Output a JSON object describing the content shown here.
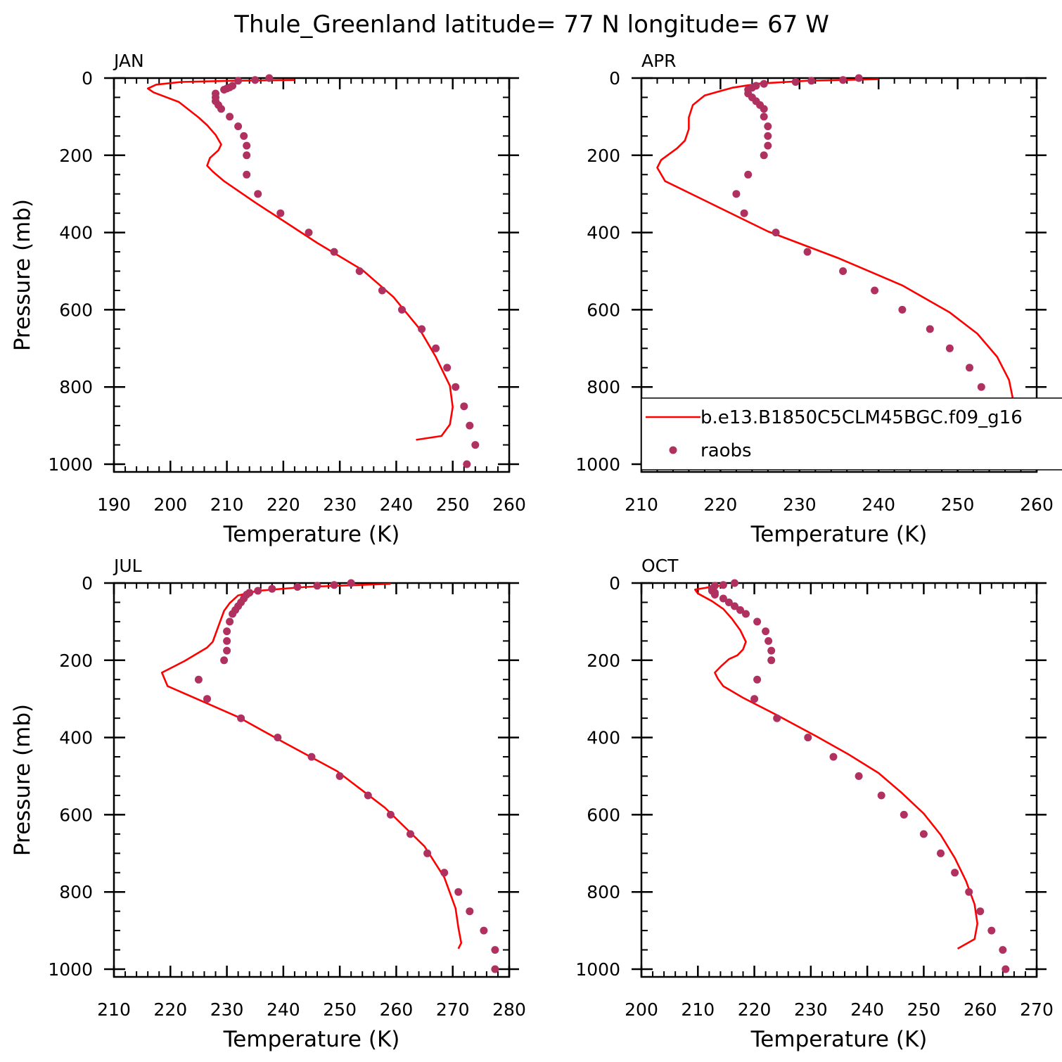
{
  "figure": {
    "title": "Thule_Greenland  latitude= 77 N longitude= 67 W"
  },
  "legend": {
    "model_label": "b.e13.B1850C5CLM45BGC.f09_g16",
    "obs_label": "raobs",
    "model_color": "#ff0000",
    "obs_color": "#b03060"
  },
  "chart_data": [
    {
      "type": "line",
      "panel": "JAN",
      "xlabel": "Temperature (K)",
      "ylabel": "Pressure (mb)",
      "xlim": [
        190,
        260
      ],
      "ylim": [
        1000,
        0
      ],
      "xticks": [
        190,
        200,
        210,
        220,
        230,
        240,
        250,
        260
      ],
      "yticks": [
        0,
        200,
        400,
        600,
        800,
        1000
      ],
      "series": [
        {
          "name": "b.e13.B1850C5CLM45BGC.f09_g16",
          "style": "line",
          "points": [
            [
              222,
              5
            ],
            [
              211,
              7
            ],
            [
              202,
              10
            ],
            [
              197.5,
              17
            ],
            [
              196,
              27
            ],
            [
              197,
              37
            ],
            [
              201.5,
              62
            ],
            [
              205,
              102
            ],
            [
              206.5,
              122
            ],
            [
              208,
              147
            ],
            [
              209,
              172
            ],
            [
              208.5,
              187
            ],
            [
              207,
              207
            ],
            [
              206.5,
              227
            ],
            [
              207.5,
              242
            ],
            [
              209.5,
              267
            ],
            [
              215,
              322
            ],
            [
              226,
              427
            ],
            [
              234,
              497
            ],
            [
              239.5,
              567
            ],
            [
              244,
              647
            ],
            [
              247,
              722
            ],
            [
              249.5,
              797
            ],
            [
              250,
              852
            ],
            [
              249.5,
              897
            ],
            [
              248,
              927
            ],
            [
              243.5,
              937
            ]
          ]
        },
        {
          "name": "raobs",
          "style": "scatter",
          "points": [
            [
              217.5,
              0
            ],
            [
              215,
              5
            ],
            [
              212,
              7
            ],
            [
              211,
              20
            ],
            [
              210.5,
              24
            ],
            [
              210,
              27
            ],
            [
              209.5,
              30
            ],
            [
              208,
              40
            ],
            [
              208,
              50
            ],
            [
              208,
              60
            ],
            [
              208.5,
              70
            ],
            [
              209,
              80
            ],
            [
              210.5,
              100
            ],
            [
              212,
              125
            ],
            [
              213,
              150
            ],
            [
              213.5,
              175
            ],
            [
              213.5,
              200
            ],
            [
              213.5,
              250
            ],
            [
              215.5,
              300
            ],
            [
              219.5,
              350
            ],
            [
              224.5,
              400
            ],
            [
              229,
              450
            ],
            [
              233.5,
              500
            ],
            [
              237.5,
              550
            ],
            [
              241,
              600
            ],
            [
              244.5,
              650
            ],
            [
              247,
              700
            ],
            [
              249,
              750
            ],
            [
              250.5,
              800
            ],
            [
              252,
              850
            ],
            [
              253,
              900
            ],
            [
              254,
              950
            ],
            [
              252.5,
              1000
            ]
          ]
        }
      ]
    },
    {
      "type": "line",
      "panel": "APR",
      "xlabel": "Temperature (K)",
      "ylabel": "",
      "xlim": [
        210,
        260
      ],
      "ylim": [
        1000,
        0
      ],
      "xticks": [
        210,
        220,
        230,
        240,
        250,
        260
      ],
      "yticks": [
        0,
        200,
        400,
        600,
        800,
        1000
      ],
      "series": [
        {
          "name": "b.e13.B1850C5CLM45BGC.f09_g16",
          "style": "line",
          "points": [
            [
              240,
              3
            ],
            [
              231,
              7
            ],
            [
              225,
              14
            ],
            [
              221.5,
              25
            ],
            [
              218,
              45
            ],
            [
              216.5,
              70
            ],
            [
              216,
              102
            ],
            [
              216,
              132
            ],
            [
              215.5,
              162
            ],
            [
              214.5,
              182
            ],
            [
              213.5,
              197
            ],
            [
              212.5,
              212
            ],
            [
              212,
              232
            ],
            [
              213,
              267
            ],
            [
              218,
              317
            ],
            [
              226,
              397
            ],
            [
              235,
              467
            ],
            [
              243,
              537
            ],
            [
              249,
              607
            ],
            [
              252.5,
              662
            ],
            [
              255,
              722
            ],
            [
              256.5,
              782
            ],
            [
              257,
              832
            ],
            [
              257.5,
              867
            ],
            [
              257,
              902
            ],
            [
              256.5,
              932
            ],
            [
              253,
              947
            ]
          ]
        },
        {
          "name": "raobs",
          "style": "scatter",
          "points": [
            [
              237.5,
              0
            ],
            [
              235.5,
              5
            ],
            [
              231.5,
              7
            ],
            [
              229.5,
              10
            ],
            [
              225.5,
              15
            ],
            [
              224.5,
              20
            ],
            [
              224,
              25
            ],
            [
              223.5,
              30
            ],
            [
              223.5,
              40
            ],
            [
              224,
              50
            ],
            [
              224.5,
              60
            ],
            [
              225,
              70
            ],
            [
              225.5,
              80
            ],
            [
              225.5,
              100
            ],
            [
              226,
              125
            ],
            [
              226,
              150
            ],
            [
              226,
              175
            ],
            [
              225.5,
              200
            ],
            [
              223.5,
              250
            ],
            [
              222,
              300
            ],
            [
              223,
              350
            ],
            [
              227,
              400
            ],
            [
              231,
              450
            ],
            [
              235.5,
              500
            ],
            [
              239.5,
              550
            ],
            [
              243,
              600
            ],
            [
              246.5,
              650
            ],
            [
              249,
              700
            ],
            [
              251.5,
              750
            ],
            [
              253,
              800
            ],
            [
              254.5,
              850
            ],
            [
              256,
              900
            ],
            [
              257,
              950
            ],
            [
              257,
              1000
            ]
          ]
        }
      ]
    },
    {
      "type": "line",
      "panel": "JUL",
      "xlabel": "Temperature (K)",
      "ylabel": "Pressure (mb)",
      "xlim": [
        210,
        280
      ],
      "ylim": [
        1000,
        0
      ],
      "xticks": [
        210,
        220,
        230,
        240,
        250,
        260,
        270,
        280
      ],
      "yticks": [
        0,
        200,
        400,
        600,
        800,
        1000
      ],
      "series": [
        {
          "name": "b.e13.B1850C5CLM45BGC.f09_g16",
          "style": "line",
          "points": [
            [
              259,
              2
            ],
            [
              244,
              10
            ],
            [
              235.5,
              20
            ],
            [
              232,
              32
            ],
            [
              230.5,
              52
            ],
            [
              229.5,
              72
            ],
            [
              228.5,
              112
            ],
            [
              227.5,
              152
            ],
            [
              226.5,
              167
            ],
            [
              222.5,
              202
            ],
            [
              218.5,
              232
            ],
            [
              219.5,
              267
            ],
            [
              225,
              302
            ],
            [
              232,
              347
            ],
            [
              240,
              412
            ],
            [
              249.5,
              487
            ],
            [
              258,
              582
            ],
            [
              265,
              682
            ],
            [
              268.5,
              762
            ],
            [
              270.5,
              842
            ],
            [
              271,
              892
            ],
            [
              271.5,
              932
            ],
            [
              271,
              947
            ]
          ]
        },
        {
          "name": "raobs",
          "style": "scatter",
          "points": [
            [
              252,
              0
            ],
            [
              249,
              5
            ],
            [
              246,
              7
            ],
            [
              242.5,
              10
            ],
            [
              238,
              15
            ],
            [
              235.5,
              20
            ],
            [
              234,
              25
            ],
            [
              233.5,
              30
            ],
            [
              233,
              40
            ],
            [
              232.5,
              50
            ],
            [
              232,
              60
            ],
            [
              231.5,
              70
            ],
            [
              231,
              80
            ],
            [
              230.5,
              100
            ],
            [
              230,
              125
            ],
            [
              230,
              150
            ],
            [
              230,
              175
            ],
            [
              229.5,
              200
            ],
            [
              225,
              250
            ],
            [
              226.5,
              300
            ],
            [
              232.5,
              350
            ],
            [
              239,
              400
            ],
            [
              245,
              450
            ],
            [
              250,
              500
            ],
            [
              255,
              550
            ],
            [
              259,
              600
            ],
            [
              262.5,
              650
            ],
            [
              265.5,
              700
            ],
            [
              268.5,
              750
            ],
            [
              271,
              800
            ],
            [
              273,
              850
            ],
            [
              275.5,
              900
            ],
            [
              277.5,
              950
            ],
            [
              277.5,
              1000
            ]
          ]
        }
      ]
    },
    {
      "type": "line",
      "panel": "OCT",
      "xlabel": "Temperature (K)",
      "ylabel": "",
      "xlim": [
        200,
        270
      ],
      "ylim": [
        1000,
        0
      ],
      "xticks": [
        200,
        210,
        220,
        230,
        240,
        250,
        260,
        270
      ],
      "yticks": [
        0,
        200,
        400,
        600,
        800,
        1000
      ],
      "series": [
        {
          "name": "b.e13.B1850C5CLM45BGC.f09_g16",
          "style": "line",
          "points": [
            [
              214,
              7
            ],
            [
              211.5,
              12
            ],
            [
              209.5,
              17
            ],
            [
              210,
              27
            ],
            [
              212.5,
              47
            ],
            [
              214.5,
              67
            ],
            [
              216,
              92
            ],
            [
              217.5,
              122
            ],
            [
              218.5,
              152
            ],
            [
              218,
              172
            ],
            [
              217,
              187
            ],
            [
              215.5,
              197
            ],
            [
              214,
              217
            ],
            [
              213,
              232
            ],
            [
              213.5,
              247
            ],
            [
              214.5,
              267
            ],
            [
              218,
              297
            ],
            [
              224,
              342
            ],
            [
              231,
              397
            ],
            [
              236.5,
              442
            ],
            [
              242,
              492
            ],
            [
              246,
              542
            ],
            [
              250,
              597
            ],
            [
              253,
              652
            ],
            [
              255.5,
              712
            ],
            [
              257.5,
              772
            ],
            [
              259,
              832
            ],
            [
              259.5,
              882
            ],
            [
              259,
              922
            ],
            [
              256,
              947
            ]
          ]
        },
        {
          "name": "raobs",
          "style": "scatter",
          "points": [
            [
              216.5,
              0
            ],
            [
              214.5,
              5
            ],
            [
              213,
              7
            ],
            [
              212.5,
              15
            ],
            [
              212.5,
              20
            ],
            [
              213,
              25
            ],
            [
              213,
              30
            ],
            [
              214.5,
              40
            ],
            [
              215.5,
              50
            ],
            [
              216.5,
              60
            ],
            [
              217.5,
              70
            ],
            [
              218.5,
              80
            ],
            [
              220.5,
              100
            ],
            [
              222,
              125
            ],
            [
              222.5,
              150
            ],
            [
              223,
              175
            ],
            [
              223,
              200
            ],
            [
              220.5,
              250
            ],
            [
              220,
              300
            ],
            [
              224,
              350
            ],
            [
              229.5,
              400
            ],
            [
              234,
              450
            ],
            [
              238.5,
              500
            ],
            [
              242.5,
              550
            ],
            [
              246.5,
              600
            ],
            [
              250,
              650
            ],
            [
              253,
              700
            ],
            [
              255.5,
              750
            ],
            [
              258,
              800
            ],
            [
              260,
              850
            ],
            [
              262,
              900
            ],
            [
              264,
              950
            ],
            [
              264.5,
              1000
            ]
          ]
        }
      ]
    }
  ]
}
